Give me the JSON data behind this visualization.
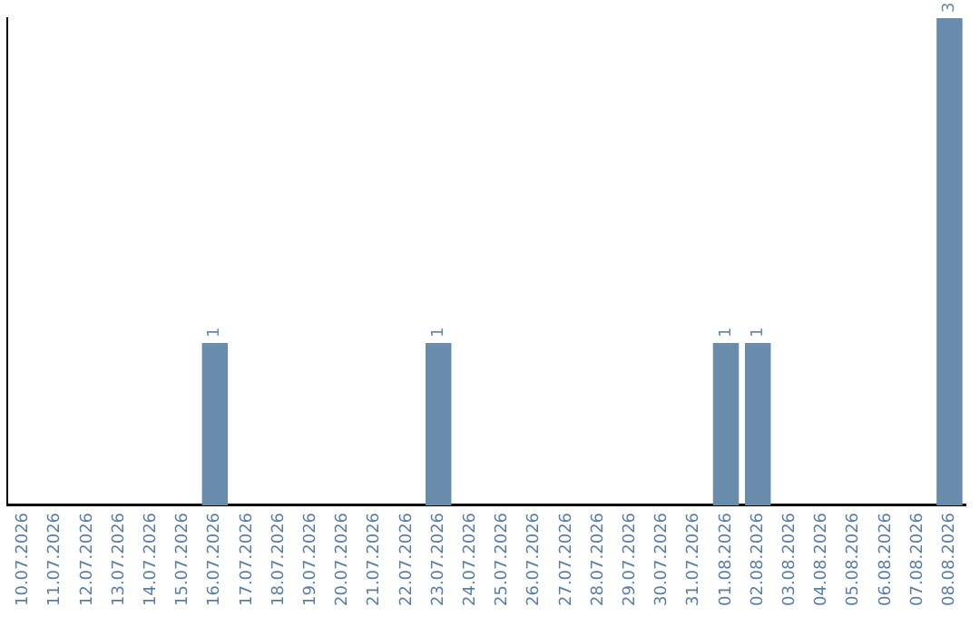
{
  "chart_data": {
    "type": "bar",
    "categories": [
      "10.07.2026",
      "11.07.2026",
      "12.07.2026",
      "13.07.2026",
      "14.07.2026",
      "15.07.2026",
      "16.07.2026",
      "17.07.2026",
      "18.07.2026",
      "19.07.2026",
      "20.07.2026",
      "21.07.2026",
      "22.07.2026",
      "23.07.2026",
      "24.07.2026",
      "25.07.2026",
      "26.07.2026",
      "27.07.2026",
      "28.07.2026",
      "29.07.2026",
      "30.07.2026",
      "31.07.2026",
      "01.08.2026",
      "02.08.2026",
      "03.08.2026",
      "04.08.2026",
      "05.08.2026",
      "06.08.2026",
      "07.08.2026",
      "08.08.2026"
    ],
    "values": [
      0,
      0,
      0,
      0,
      0,
      0,
      1,
      0,
      0,
      0,
      0,
      0,
      0,
      1,
      0,
      0,
      0,
      0,
      0,
      0,
      0,
      0,
      1,
      1,
      0,
      0,
      0,
      0,
      0,
      3
    ],
    "value_labels": [
      null,
      null,
      null,
      null,
      null,
      null,
      "1",
      null,
      null,
      null,
      null,
      null,
      null,
      "1",
      null,
      null,
      null,
      null,
      null,
      null,
      null,
      null,
      "1",
      "1",
      null,
      null,
      null,
      null,
      null,
      "3"
    ],
    "color": "#6a8cac",
    "ylim": [
      0,
      3
    ],
    "tick_labels": "x",
    "grid": false,
    "legend": false
  }
}
